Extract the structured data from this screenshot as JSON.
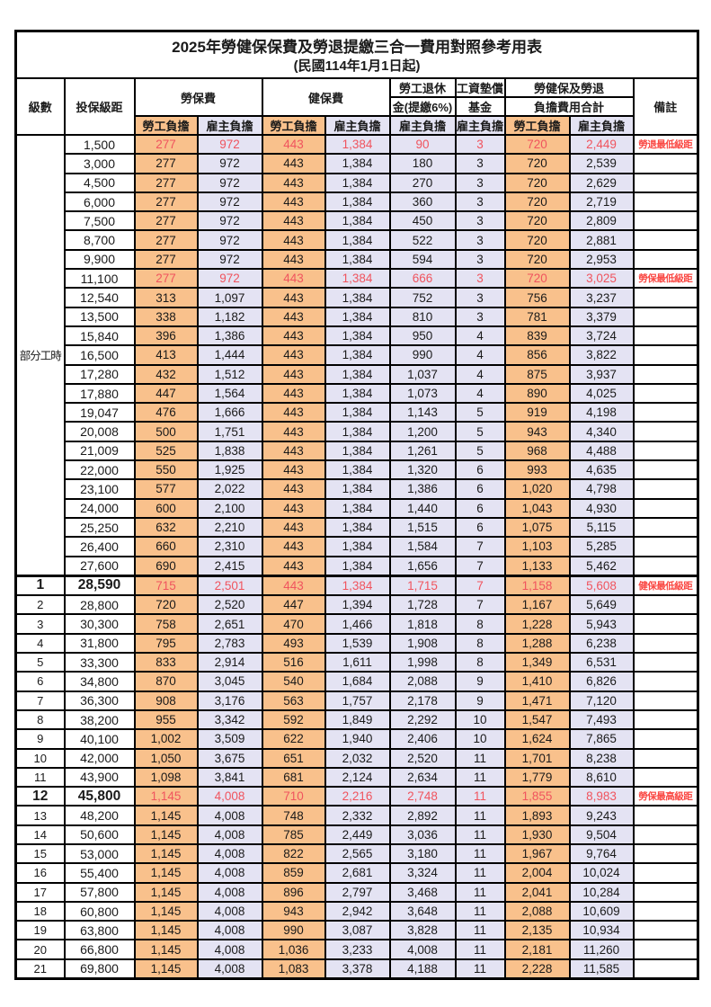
{
  "title": "2025年勞健保保費及勞退提繳三合一費用對照參考用表",
  "subtitle": "(民國114年1月1日起)",
  "colors": {
    "employee_bg": "#F9C18C",
    "employer_bg": "#E4E3F3",
    "red_value": "#F0545E",
    "red_note": "#FA4843",
    "border": "#000000"
  },
  "header": {
    "grade": "級數",
    "salary": "投保級距",
    "labor": "勞保費",
    "health": "健保費",
    "pension_l1": "勞工退休",
    "pension_l2": "金(提繳6%)",
    "fund_l1": "工資墊償",
    "fund_l2": "基金",
    "total_l1": "勞健保及勞退",
    "total_l2": "負擔費用合計",
    "note": "備註",
    "employee": "勞工負擔",
    "employer": "雇主負擔"
  },
  "part_time_label": "部分工時",
  "part_time_rowspan": 23,
  "section_start": 23,
  "rows": [
    {
      "g": "",
      "s": "1,500",
      "v": [
        "277",
        "972",
        "443",
        "1,384",
        "90",
        "3",
        "720",
        "2,449"
      ],
      "n": "勞退最低級距",
      "red": true,
      "big": false
    },
    {
      "g": "",
      "s": "3,000",
      "v": [
        "277",
        "972",
        "443",
        "1,384",
        "180",
        "3",
        "720",
        "2,539"
      ],
      "n": "",
      "red": false,
      "big": false
    },
    {
      "g": "",
      "s": "4,500",
      "v": [
        "277",
        "972",
        "443",
        "1,384",
        "270",
        "3",
        "720",
        "2,629"
      ],
      "n": "",
      "red": false,
      "big": false
    },
    {
      "g": "",
      "s": "6,000",
      "v": [
        "277",
        "972",
        "443",
        "1,384",
        "360",
        "3",
        "720",
        "2,719"
      ],
      "n": "",
      "red": false,
      "big": false
    },
    {
      "g": "",
      "s": "7,500",
      "v": [
        "277",
        "972",
        "443",
        "1,384",
        "450",
        "3",
        "720",
        "2,809"
      ],
      "n": "",
      "red": false,
      "big": false
    },
    {
      "g": "",
      "s": "8,700",
      "v": [
        "277",
        "972",
        "443",
        "1,384",
        "522",
        "3",
        "720",
        "2,881"
      ],
      "n": "",
      "red": false,
      "big": false
    },
    {
      "g": "",
      "s": "9,900",
      "v": [
        "277",
        "972",
        "443",
        "1,384",
        "594",
        "3",
        "720",
        "2,953"
      ],
      "n": "",
      "red": false,
      "big": false
    },
    {
      "g": "",
      "s": "11,100",
      "v": [
        "277",
        "972",
        "443",
        "1,384",
        "666",
        "3",
        "720",
        "3,025"
      ],
      "n": "勞保最低級距",
      "red": true,
      "big": false
    },
    {
      "g": "",
      "s": "12,540",
      "v": [
        "313",
        "1,097",
        "443",
        "1,384",
        "752",
        "3",
        "756",
        "3,237"
      ],
      "n": "",
      "red": false,
      "big": false
    },
    {
      "g": "",
      "s": "13,500",
      "v": [
        "338",
        "1,182",
        "443",
        "1,384",
        "810",
        "3",
        "781",
        "3,379"
      ],
      "n": "",
      "red": false,
      "big": false
    },
    {
      "g": "",
      "s": "15,840",
      "v": [
        "396",
        "1,386",
        "443",
        "1,384",
        "950",
        "4",
        "839",
        "3,724"
      ],
      "n": "",
      "red": false,
      "big": false
    },
    {
      "g": "",
      "s": "16,500",
      "v": [
        "413",
        "1,444",
        "443",
        "1,384",
        "990",
        "4",
        "856",
        "3,822"
      ],
      "n": "",
      "red": false,
      "big": false
    },
    {
      "g": "",
      "s": "17,280",
      "v": [
        "432",
        "1,512",
        "443",
        "1,384",
        "1,037",
        "4",
        "875",
        "3,937"
      ],
      "n": "",
      "red": false,
      "big": false
    },
    {
      "g": "",
      "s": "17,880",
      "v": [
        "447",
        "1,564",
        "443",
        "1,384",
        "1,073",
        "4",
        "890",
        "4,025"
      ],
      "n": "",
      "red": false,
      "big": false
    },
    {
      "g": "",
      "s": "19,047",
      "v": [
        "476",
        "1,666",
        "443",
        "1,384",
        "1,143",
        "5",
        "919",
        "4,198"
      ],
      "n": "",
      "red": false,
      "big": false
    },
    {
      "g": "",
      "s": "20,008",
      "v": [
        "500",
        "1,751",
        "443",
        "1,384",
        "1,200",
        "5",
        "943",
        "4,340"
      ],
      "n": "",
      "red": false,
      "big": false
    },
    {
      "g": "",
      "s": "21,009",
      "v": [
        "525",
        "1,838",
        "443",
        "1,384",
        "1,261",
        "5",
        "968",
        "4,488"
      ],
      "n": "",
      "red": false,
      "big": false
    },
    {
      "g": "",
      "s": "22,000",
      "v": [
        "550",
        "1,925",
        "443",
        "1,384",
        "1,320",
        "6",
        "993",
        "4,635"
      ],
      "n": "",
      "red": false,
      "big": false
    },
    {
      "g": "",
      "s": "23,100",
      "v": [
        "577",
        "2,022",
        "443",
        "1,384",
        "1,386",
        "6",
        "1,020",
        "4,798"
      ],
      "n": "",
      "red": false,
      "big": false
    },
    {
      "g": "",
      "s": "24,000",
      "v": [
        "600",
        "2,100",
        "443",
        "1,384",
        "1,440",
        "6",
        "1,043",
        "4,930"
      ],
      "n": "",
      "red": false,
      "big": false
    },
    {
      "g": "",
      "s": "25,250",
      "v": [
        "632",
        "2,210",
        "443",
        "1,384",
        "1,515",
        "6",
        "1,075",
        "5,115"
      ],
      "n": "",
      "red": false,
      "big": false
    },
    {
      "g": "",
      "s": "26,400",
      "v": [
        "660",
        "2,310",
        "443",
        "1,384",
        "1,584",
        "7",
        "1,103",
        "5,285"
      ],
      "n": "",
      "red": false,
      "big": false
    },
    {
      "g": "",
      "s": "27,600",
      "v": [
        "690",
        "2,415",
        "443",
        "1,384",
        "1,656",
        "7",
        "1,133",
        "5,462"
      ],
      "n": "",
      "red": false,
      "big": false
    },
    {
      "g": "1",
      "s": "28,590",
      "v": [
        "715",
        "2,501",
        "443",
        "1,384",
        "1,715",
        "7",
        "1,158",
        "5,608"
      ],
      "n": "健保最低級距",
      "red": true,
      "big": true
    },
    {
      "g": "2",
      "s": "28,800",
      "v": [
        "720",
        "2,520",
        "447",
        "1,394",
        "1,728",
        "7",
        "1,167",
        "5,649"
      ],
      "n": "",
      "red": false,
      "big": false
    },
    {
      "g": "3",
      "s": "30,300",
      "v": [
        "758",
        "2,651",
        "470",
        "1,466",
        "1,818",
        "8",
        "1,228",
        "5,943"
      ],
      "n": "",
      "red": false,
      "big": false
    },
    {
      "g": "4",
      "s": "31,800",
      "v": [
        "795",
        "2,783",
        "493",
        "1,539",
        "1,908",
        "8",
        "1,288",
        "6,238"
      ],
      "n": "",
      "red": false,
      "big": false
    },
    {
      "g": "5",
      "s": "33,300",
      "v": [
        "833",
        "2,914",
        "516",
        "1,611",
        "1,998",
        "8",
        "1,349",
        "6,531"
      ],
      "n": "",
      "red": false,
      "big": false
    },
    {
      "g": "6",
      "s": "34,800",
      "v": [
        "870",
        "3,045",
        "540",
        "1,684",
        "2,088",
        "9",
        "1,410",
        "6,826"
      ],
      "n": "",
      "red": false,
      "big": false
    },
    {
      "g": "7",
      "s": "36,300",
      "v": [
        "908",
        "3,176",
        "563",
        "1,757",
        "2,178",
        "9",
        "1,471",
        "7,120"
      ],
      "n": "",
      "red": false,
      "big": false
    },
    {
      "g": "8",
      "s": "38,200",
      "v": [
        "955",
        "3,342",
        "592",
        "1,849",
        "2,292",
        "10",
        "1,547",
        "7,493"
      ],
      "n": "",
      "red": false,
      "big": false
    },
    {
      "g": "9",
      "s": "40,100",
      "v": [
        "1,002",
        "3,509",
        "622",
        "1,940",
        "2,406",
        "10",
        "1,624",
        "7,865"
      ],
      "n": "",
      "red": false,
      "big": false
    },
    {
      "g": "10",
      "s": "42,000",
      "v": [
        "1,050",
        "3,675",
        "651",
        "2,032",
        "2,520",
        "11",
        "1,701",
        "8,238"
      ],
      "n": "",
      "red": false,
      "big": false
    },
    {
      "g": "11",
      "s": "43,900",
      "v": [
        "1,098",
        "3,841",
        "681",
        "2,124",
        "2,634",
        "11",
        "1,779",
        "8,610"
      ],
      "n": "",
      "red": false,
      "big": false
    },
    {
      "g": "12",
      "s": "45,800",
      "v": [
        "1,145",
        "4,008",
        "710",
        "2,216",
        "2,748",
        "11",
        "1,855",
        "8,983"
      ],
      "n": "勞保最高級距",
      "red": true,
      "big": true
    },
    {
      "g": "13",
      "s": "48,200",
      "v": [
        "1,145",
        "4,008",
        "748",
        "2,332",
        "2,892",
        "11",
        "1,893",
        "9,243"
      ],
      "n": "",
      "red": false,
      "big": false
    },
    {
      "g": "14",
      "s": "50,600",
      "v": [
        "1,145",
        "4,008",
        "785",
        "2,449",
        "3,036",
        "11",
        "1,930",
        "9,504"
      ],
      "n": "",
      "red": false,
      "big": false
    },
    {
      "g": "15",
      "s": "53,000",
      "v": [
        "1,145",
        "4,008",
        "822",
        "2,565",
        "3,180",
        "11",
        "1,967",
        "9,764"
      ],
      "n": "",
      "red": false,
      "big": false
    },
    {
      "g": "16",
      "s": "55,400",
      "v": [
        "1,145",
        "4,008",
        "859",
        "2,681",
        "3,324",
        "11",
        "2,004",
        "10,024"
      ],
      "n": "",
      "red": false,
      "big": false
    },
    {
      "g": "17",
      "s": "57,800",
      "v": [
        "1,145",
        "4,008",
        "896",
        "2,797",
        "3,468",
        "11",
        "2,041",
        "10,284"
      ],
      "n": "",
      "red": false,
      "big": false
    },
    {
      "g": "18",
      "s": "60,800",
      "v": [
        "1,145",
        "4,008",
        "943",
        "2,942",
        "3,648",
        "11",
        "2,088",
        "10,609"
      ],
      "n": "",
      "red": false,
      "big": false
    },
    {
      "g": "19",
      "s": "63,800",
      "v": [
        "1,145",
        "4,008",
        "990",
        "3,087",
        "3,828",
        "11",
        "2,135",
        "10,934"
      ],
      "n": "",
      "red": false,
      "big": false
    },
    {
      "g": "20",
      "s": "66,800",
      "v": [
        "1,145",
        "4,008",
        "1,036",
        "3,233",
        "4,008",
        "11",
        "2,181",
        "11,260"
      ],
      "n": "",
      "red": false,
      "big": false
    },
    {
      "g": "21",
      "s": "69,800",
      "v": [
        "1,145",
        "4,008",
        "1,083",
        "3,378",
        "4,188",
        "11",
        "2,228",
        "11,585"
      ],
      "n": "",
      "red": false,
      "big": false
    }
  ]
}
